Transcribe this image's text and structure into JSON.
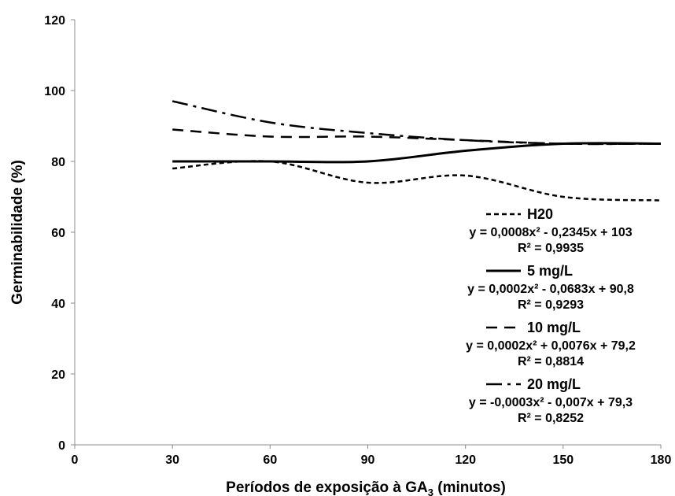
{
  "chart_data": {
    "type": "line",
    "xlabel": "Períodos de exposição à GA",
    "xlabel_subscript": "3",
    "xlabel_suffix": " (minutos)",
    "ylabel": "Germinabilidade (%)",
    "xlim": [
      0,
      180
    ],
    "ylim": [
      0,
      120
    ],
    "x_ticks": [
      "0",
      "30",
      "60",
      "90",
      "120",
      "150",
      "180"
    ],
    "y_ticks": [
      "0",
      "20",
      "40",
      "60",
      "80",
      "100",
      "120"
    ],
    "grid": false,
    "legend_position": "bottom-right",
    "x": [
      30,
      60,
      90,
      120,
      150,
      180
    ],
    "series": [
      {
        "name": "H20",
        "style": "short-dash",
        "values": [
          78,
          80,
          74,
          76,
          70,
          69
        ],
        "equation": "y = 0,0008x² - 0,2345x + 103",
        "r2": "R² = 0,9935"
      },
      {
        "name": "5 mg/L",
        "style": "solid",
        "values": [
          80,
          80,
          80,
          83,
          85,
          85
        ],
        "equation": "y = 0,0002x² - 0,0683x + 90,8",
        "r2": "R² = 0,9293"
      },
      {
        "name": "10 mg/L",
        "style": "long-dash",
        "values": [
          89,
          87,
          87,
          86,
          85,
          85
        ],
        "equation": "y = 0,0002x² + 0,0076x + 79,2",
        "r2": "R² = 0,8814"
      },
      {
        "name": "20 mg/L",
        "style": "dash-dot",
        "values": [
          97,
          91,
          88,
          86,
          85,
          85
        ],
        "equation": "y = -0,0003x² - 0,007x + 79,3",
        "r2": "R² = 0,8252"
      }
    ]
  }
}
